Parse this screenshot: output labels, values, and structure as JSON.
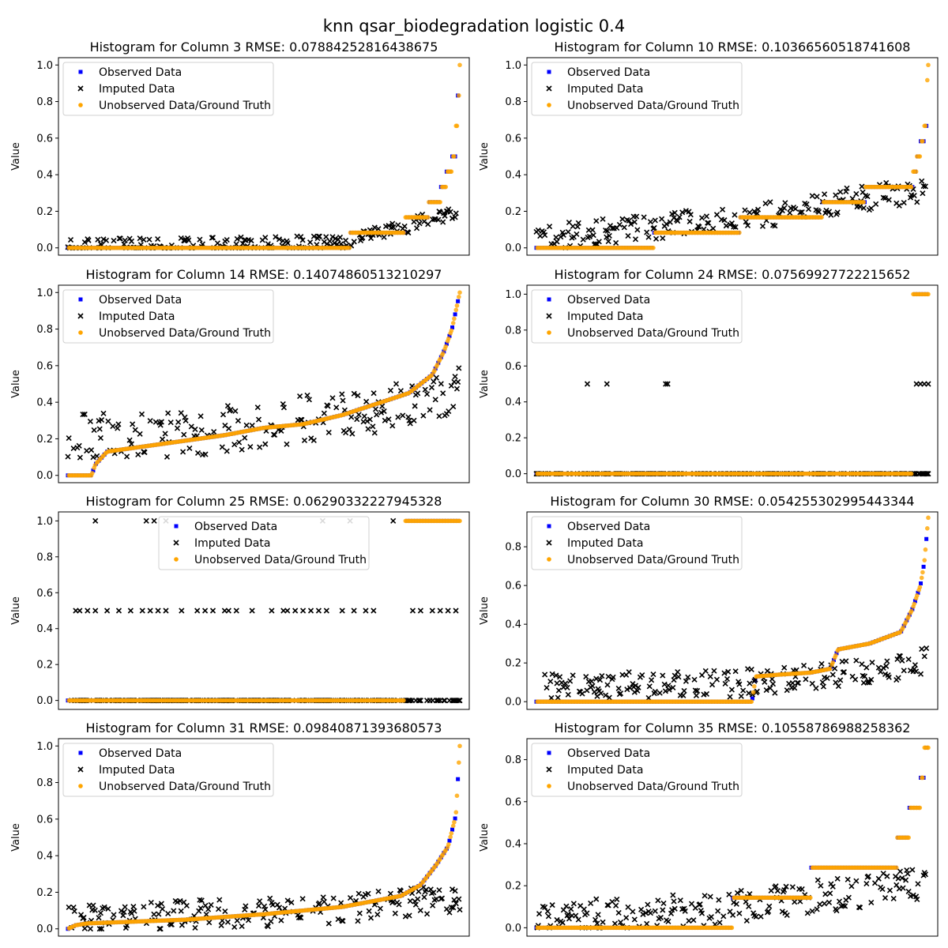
{
  "figure_title": "knn qsar_biodegradation logistic 0.4",
  "legend_labels": [
    "Observed Data",
    "Imputed Data",
    "Unobserved Data/Ground Truth"
  ],
  "colors": {
    "observed": "#0000ff",
    "imputed": "#000000",
    "ground_truth": "#ffa500"
  },
  "chart_data": [
    {
      "type": "scatter",
      "title": "Histogram for Column 3 RMSE: 0.07884252816438675",
      "ylabel": "Value",
      "ylim": [
        -0.04,
        1.04
      ],
      "yticks": [
        0.0,
        0.2,
        0.4,
        0.6,
        0.8,
        1.0
      ],
      "ytick_labels": [
        "0.0",
        "0.2",
        "0.4",
        "0.6",
        "0.8",
        "1.0"
      ],
      "legend_position": "upper-left",
      "n_points": 420,
      "ground_truth_steps": [
        [
          0.0,
          0.0
        ],
        [
          0.72,
          0.083
        ],
        [
          0.86,
          0.167
        ],
        [
          0.92,
          0.25
        ],
        [
          0.95,
          0.333
        ],
        [
          0.965,
          0.417
        ],
        [
          0.98,
          0.5
        ],
        [
          0.99,
          0.667
        ],
        [
          0.995,
          0.833
        ],
        [
          1.0,
          1.0
        ]
      ],
      "imputed_profile": [
        [
          0.0,
          0.0
        ],
        [
          0.7,
          0.02
        ],
        [
          0.75,
          0.06
        ],
        [
          0.85,
          0.1
        ],
        [
          0.92,
          0.15
        ],
        [
          1.0,
          0.2
        ]
      ],
      "imputed_spread": 0.04,
      "imputed_max": 0.5
    },
    {
      "type": "scatter",
      "title": "Histogram for Column 10 RMSE: 0.10366560518741608",
      "ylabel": "Value",
      "ylim": [
        -0.04,
        1.04
      ],
      "yticks": [
        0.0,
        0.2,
        0.4,
        0.6,
        0.8,
        1.0
      ],
      "ytick_labels": [
        "0.0",
        "0.2",
        "0.4",
        "0.6",
        "0.8",
        "1.0"
      ],
      "legend_position": "upper-left",
      "n_points": 420,
      "ground_truth_steps": [
        [
          0.0,
          0.0
        ],
        [
          0.3,
          0.083
        ],
        [
          0.52,
          0.167
        ],
        [
          0.73,
          0.25
        ],
        [
          0.84,
          0.333
        ],
        [
          0.96,
          0.417
        ],
        [
          0.97,
          0.5
        ],
        [
          0.98,
          0.583
        ],
        [
          0.99,
          0.667
        ],
        [
          0.997,
          0.917
        ],
        [
          1.0,
          1.0
        ]
      ],
      "imputed_profile": [
        [
          0.0,
          0.04
        ],
        [
          0.3,
          0.1
        ],
        [
          0.6,
          0.17
        ],
        [
          0.8,
          0.25
        ],
        [
          1.0,
          0.3
        ]
      ],
      "imputed_spread": 0.07,
      "imputed_max": 0.46
    },
    {
      "type": "scatter",
      "title": "Histogram for Column 14 RMSE: 0.14074860513210297",
      "ylabel": "Value",
      "ylim": [
        -0.04,
        1.04
      ],
      "yticks": [
        0.0,
        0.2,
        0.4,
        0.6,
        0.8,
        1.0
      ],
      "ytick_labels": [
        "0.0",
        "0.2",
        "0.4",
        "0.6",
        "0.8",
        "1.0"
      ],
      "legend_position": "upper-left",
      "n_points": 420,
      "ground_truth_curve": [
        [
          0.0,
          0.0
        ],
        [
          0.06,
          0.0
        ],
        [
          0.07,
          0.06
        ],
        [
          0.1,
          0.13
        ],
        [
          0.3,
          0.19
        ],
        [
          0.4,
          0.22
        ],
        [
          0.5,
          0.26
        ],
        [
          0.6,
          0.28
        ],
        [
          0.7,
          0.33
        ],
        [
          0.8,
          0.4
        ],
        [
          0.87,
          0.45
        ],
        [
          0.93,
          0.55
        ],
        [
          0.96,
          0.68
        ],
        [
          0.98,
          0.8
        ],
        [
          1.0,
          1.0
        ]
      ],
      "imputed_profile": [
        [
          0.0,
          0.2
        ],
        [
          0.3,
          0.2
        ],
        [
          0.6,
          0.28
        ],
        [
          0.8,
          0.33
        ],
        [
          1.0,
          0.45
        ]
      ],
      "imputed_spread": 0.13,
      "imputed_max": 0.96
    },
    {
      "type": "scatter",
      "title": "Histogram for Column 24 RMSE: 0.07569927722215652",
      "ylabel": "Value",
      "ylim": [
        -0.05,
        1.05
      ],
      "yticks": [
        0.0,
        0.2,
        0.4,
        0.6,
        0.8,
        1.0
      ],
      "ytick_labels": [
        "0.0",
        "0.2",
        "0.4",
        "0.6",
        "0.8",
        "1.0"
      ],
      "legend_position": "upper-left",
      "n_points": 420,
      "ground_truth_steps": [
        [
          0.0,
          0.0
        ],
        [
          0.96,
          1.0
        ],
        [
          1.0,
          1.0
        ]
      ],
      "imputed_profile": [
        [
          0.0,
          0.0
        ],
        [
          1.0,
          0.0
        ]
      ],
      "imputed_spread": 0.0,
      "imputed_max": 1.0,
      "imputed_extra": [
        [
          0.13,
          0.5
        ],
        [
          0.18,
          0.5
        ],
        [
          0.33,
          0.5
        ],
        [
          0.335,
          0.5
        ],
        [
          0.97,
          0.5
        ],
        [
          0.98,
          0.5
        ],
        [
          0.99,
          0.5
        ],
        [
          1.0,
          0.5
        ],
        [
          0.955,
          0.0
        ],
        [
          0.965,
          0.0
        ]
      ]
    },
    {
      "type": "scatter",
      "title": "Histogram for Column 25 RMSE: 0.06290332227945328",
      "ylabel": "Value",
      "ylim": [
        -0.05,
        1.05
      ],
      "yticks": [
        0.0,
        0.2,
        0.4,
        0.6,
        0.8,
        1.0
      ],
      "ytick_labels": [
        "0.0",
        "0.2",
        "0.4",
        "0.6",
        "0.8",
        "1.0"
      ],
      "legend_position": "upper-center",
      "n_points": 420,
      "ground_truth_steps": [
        [
          0.0,
          0.0
        ],
        [
          0.86,
          1.0
        ],
        [
          1.0,
          1.0
        ]
      ],
      "imputed_profile": [
        [
          0.0,
          0.0
        ],
        [
          1.0,
          0.0
        ]
      ],
      "imputed_spread": 0.0,
      "imputed_max": 1.0,
      "imputed_extra": [
        [
          0.02,
          0.5
        ],
        [
          0.03,
          0.5
        ],
        [
          0.05,
          0.5
        ],
        [
          0.07,
          0.5
        ],
        [
          0.1,
          0.5
        ],
        [
          0.13,
          0.5
        ],
        [
          0.16,
          0.5
        ],
        [
          0.19,
          0.5
        ],
        [
          0.21,
          0.5
        ],
        [
          0.23,
          0.5
        ],
        [
          0.25,
          0.5
        ],
        [
          0.29,
          0.5
        ],
        [
          0.33,
          0.5
        ],
        [
          0.35,
          0.5
        ],
        [
          0.37,
          0.5
        ],
        [
          0.4,
          0.5
        ],
        [
          0.41,
          0.5
        ],
        [
          0.43,
          0.5
        ],
        [
          0.47,
          0.5
        ],
        [
          0.52,
          0.5
        ],
        [
          0.55,
          0.5
        ],
        [
          0.56,
          0.5
        ],
        [
          0.58,
          0.5
        ],
        [
          0.6,
          0.5
        ],
        [
          0.62,
          0.5
        ],
        [
          0.64,
          0.5
        ],
        [
          0.66,
          0.5
        ],
        [
          0.7,
          0.5
        ],
        [
          0.73,
          0.5
        ],
        [
          0.76,
          0.5
        ],
        [
          0.78,
          0.5
        ],
        [
          0.88,
          0.5
        ],
        [
          0.9,
          0.5
        ],
        [
          0.93,
          0.5
        ],
        [
          0.95,
          0.5
        ],
        [
          0.97,
          0.5
        ],
        [
          0.99,
          0.5
        ],
        [
          0.07,
          1.0
        ],
        [
          0.2,
          1.0
        ],
        [
          0.22,
          1.0
        ],
        [
          0.25,
          1.0
        ],
        [
          0.65,
          1.0
        ],
        [
          0.72,
          1.0
        ],
        [
          0.83,
          1.0
        ],
        [
          0.87,
          0.0
        ],
        [
          0.9,
          0.0
        ],
        [
          0.95,
          0.0
        ]
      ]
    },
    {
      "type": "scatter",
      "title": "Histogram for Column 30 RMSE: 0.054255302995443344",
      "ylabel": "Value",
      "ylim": [
        -0.04,
        0.98
      ],
      "yticks": [
        0.0,
        0.2,
        0.4,
        0.6,
        0.8
      ],
      "ytick_labels": [
        "0.0",
        "0.2",
        "0.4",
        "0.6",
        "0.8"
      ],
      "legend_position": "upper-left",
      "n_points": 420,
      "ground_truth_curve": [
        [
          0.0,
          0.0
        ],
        [
          0.55,
          0.0
        ],
        [
          0.56,
          0.13
        ],
        [
          0.62,
          0.14
        ],
        [
          0.7,
          0.15
        ],
        [
          0.75,
          0.17
        ],
        [
          0.77,
          0.27
        ],
        [
          0.85,
          0.3
        ],
        [
          0.93,
          0.36
        ],
        [
          0.96,
          0.48
        ],
        [
          0.98,
          0.6
        ],
        [
          0.99,
          0.72
        ],
        [
          1.0,
          0.95
        ]
      ],
      "imputed_profile": [
        [
          0.0,
          0.06
        ],
        [
          0.5,
          0.08
        ],
        [
          0.75,
          0.12
        ],
        [
          0.9,
          0.16
        ],
        [
          1.0,
          0.2
        ]
      ],
      "imputed_spread": 0.07,
      "imputed_max": 0.45
    },
    {
      "type": "scatter",
      "title": "Histogram for Column 31 RMSE: 0.09840871393680573",
      "ylabel": "Value",
      "ylim": [
        -0.04,
        1.04
      ],
      "yticks": [
        0.0,
        0.2,
        0.4,
        0.6,
        0.8,
        1.0
      ],
      "ytick_labels": [
        "0.0",
        "0.2",
        "0.4",
        "0.6",
        "0.8",
        "1.0"
      ],
      "legend_position": "upper-left",
      "n_points": 420,
      "ground_truth_curve": [
        [
          0.0,
          0.0
        ],
        [
          0.02,
          0.02
        ],
        [
          0.05,
          0.03
        ],
        [
          0.3,
          0.05
        ],
        [
          0.5,
          0.08
        ],
        [
          0.7,
          0.12
        ],
        [
          0.85,
          0.18
        ],
        [
          0.9,
          0.24
        ],
        [
          0.94,
          0.35
        ],
        [
          0.97,
          0.45
        ],
        [
          0.99,
          0.62
        ],
        [
          1.0,
          1.0
        ]
      ],
      "imputed_profile": [
        [
          0.0,
          0.03
        ],
        [
          0.3,
          0.06
        ],
        [
          0.6,
          0.08
        ],
        [
          0.85,
          0.12
        ],
        [
          1.0,
          0.15
        ]
      ],
      "imputed_spread": 0.08,
      "imputed_max": 0.6
    },
    {
      "type": "scatter",
      "title": "Histogram for Column 35 RMSE: 0.10558786988258362",
      "ylabel": "Value",
      "ylim": [
        -0.04,
        0.9
      ],
      "yticks": [
        0.0,
        0.2,
        0.4,
        0.6,
        0.8
      ],
      "ytick_labels": [
        "0.0",
        "0.2",
        "0.4",
        "0.6",
        "0.8"
      ],
      "legend_position": "upper-left",
      "n_points": 420,
      "ground_truth_steps": [
        [
          0.0,
          0.0
        ],
        [
          0.5,
          0.143
        ],
        [
          0.7,
          0.286
        ],
        [
          0.92,
          0.429
        ],
        [
          0.95,
          0.571
        ],
        [
          0.98,
          0.714
        ],
        [
          0.99,
          0.857
        ],
        [
          1.0,
          0.857
        ]
      ],
      "imputed_profile": [
        [
          0.0,
          0.03
        ],
        [
          0.5,
          0.08
        ],
        [
          0.8,
          0.15
        ],
        [
          1.0,
          0.2
        ]
      ],
      "imputed_spread": 0.08,
      "imputed_max": 0.86
    }
  ]
}
